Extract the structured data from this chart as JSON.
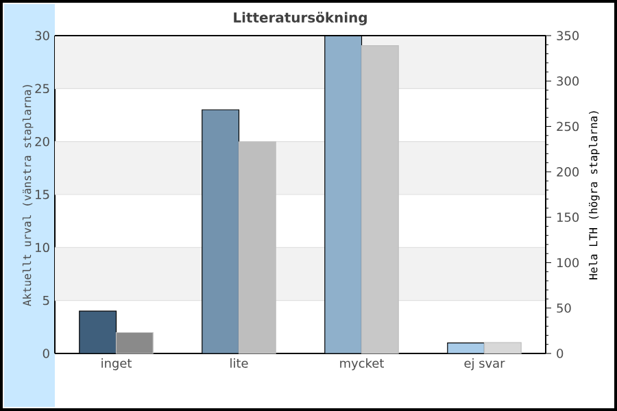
{
  "chart_data": {
    "type": "bar",
    "title": "Litteratursökning",
    "ylabel": "Aktuellt urval (vänstra staplarna)",
    "y2label": "Hela LTH (högra staplarna)",
    "categories": [
      "inget",
      "lite",
      "mycket",
      "ej svar"
    ],
    "series": [
      {
        "colors": [
          "#3f5f7c",
          "#7393ae",
          "#8fb0cb",
          "#a8cbe8"
        ],
        "values": [
          4,
          23,
          30,
          1
        ]
      },
      {
        "axis": "y2",
        "colors": [
          "#8a8a8a",
          "#bebebe",
          "#c8c8c8",
          "#d8d8d8"
        ],
        "values": [
          23,
          233,
          339,
          12
        ]
      }
    ],
    "ylim": [
      0,
      30
    ],
    "yticks": [
      0,
      5,
      10,
      15,
      20,
      25,
      30
    ],
    "y2lim": [
      0,
      350
    ],
    "y2ticks": [
      0,
      50,
      100,
      150,
      200,
      250,
      300,
      350
    ],
    "grid": "y"
  }
}
